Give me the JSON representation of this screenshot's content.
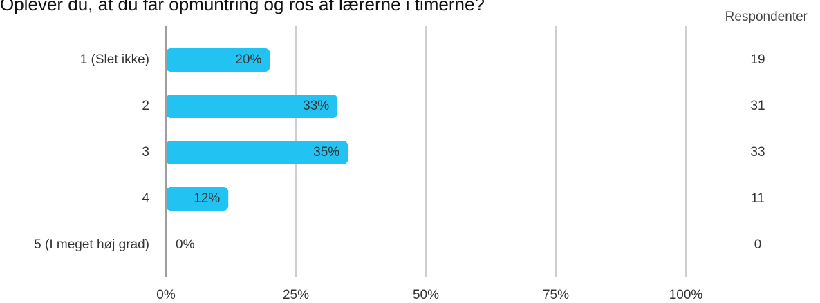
{
  "title": "Oplever du, at du får opmuntring og ros af lærerne i timerne?",
  "respondents_header": "Respondenter",
  "colors": {
    "bar": "#22c3f2",
    "grid": "#9e9e9e",
    "axis": "#9e9e9e",
    "text": "#333333"
  },
  "chart_data": {
    "type": "bar",
    "orientation": "horizontal",
    "categories": [
      "1 (Slet ikke)",
      "2",
      "3",
      "4",
      "5 (I meget høj grad)"
    ],
    "values": [
      20,
      33,
      35,
      12,
      0
    ],
    "value_labels": [
      "20%",
      "33%",
      "35%",
      "12%",
      "0%"
    ],
    "respondents": [
      19,
      31,
      33,
      11,
      0
    ],
    "xlim": [
      0,
      100
    ],
    "x_ticks": [
      "0%",
      "25%",
      "50%",
      "75%",
      "100%"
    ],
    "grid": true
  }
}
